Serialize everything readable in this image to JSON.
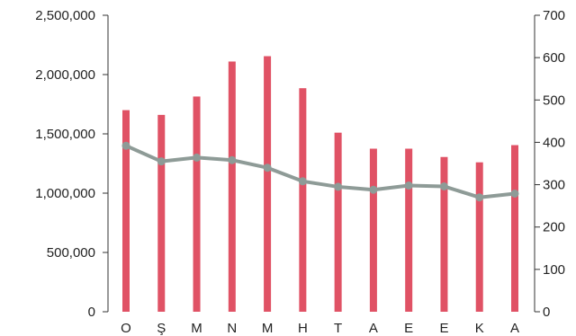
{
  "chart_data": {
    "type": "bar",
    "categories": [
      "O",
      "Ş",
      "M",
      "N",
      "M",
      "H",
      "T",
      "A",
      "E",
      "E",
      "K",
      "A"
    ],
    "series": [
      {
        "type": "bar",
        "axis": "left",
        "values": [
          1700000,
          1660000,
          1815000,
          2110000,
          2155000,
          1885000,
          1510000,
          1375000,
          1375000,
          1305000,
          1260000,
          1405000
        ]
      },
      {
        "type": "line",
        "axis": "right",
        "values": [
          392,
          355,
          364,
          358,
          340,
          308,
          295,
          288,
          298,
          296,
          270,
          279
        ]
      }
    ],
    "y_left": {
      "range": [
        0,
        2500000
      ],
      "ticks": [
        0,
        500000,
        1000000,
        1500000,
        2000000,
        2500000
      ],
      "tick_labels": [
        "0",
        "500,000",
        "1,000,000",
        "1,500,000",
        "2,000,000",
        "2,500,000"
      ]
    },
    "y_right": {
      "range": [
        0,
        700
      ],
      "ticks": [
        0,
        100,
        200,
        300,
        400,
        500,
        600,
        700
      ],
      "tick_labels": [
        "0",
        "100",
        "200",
        "300",
        "400",
        "500",
        "600",
        "700"
      ]
    },
    "title": "",
    "xlabel": "",
    "grid": false,
    "legend": "none",
    "colors": {
      "bar": "#e05265",
      "line": "#8e9b97",
      "axis": "#333333",
      "text": "#222222"
    }
  }
}
